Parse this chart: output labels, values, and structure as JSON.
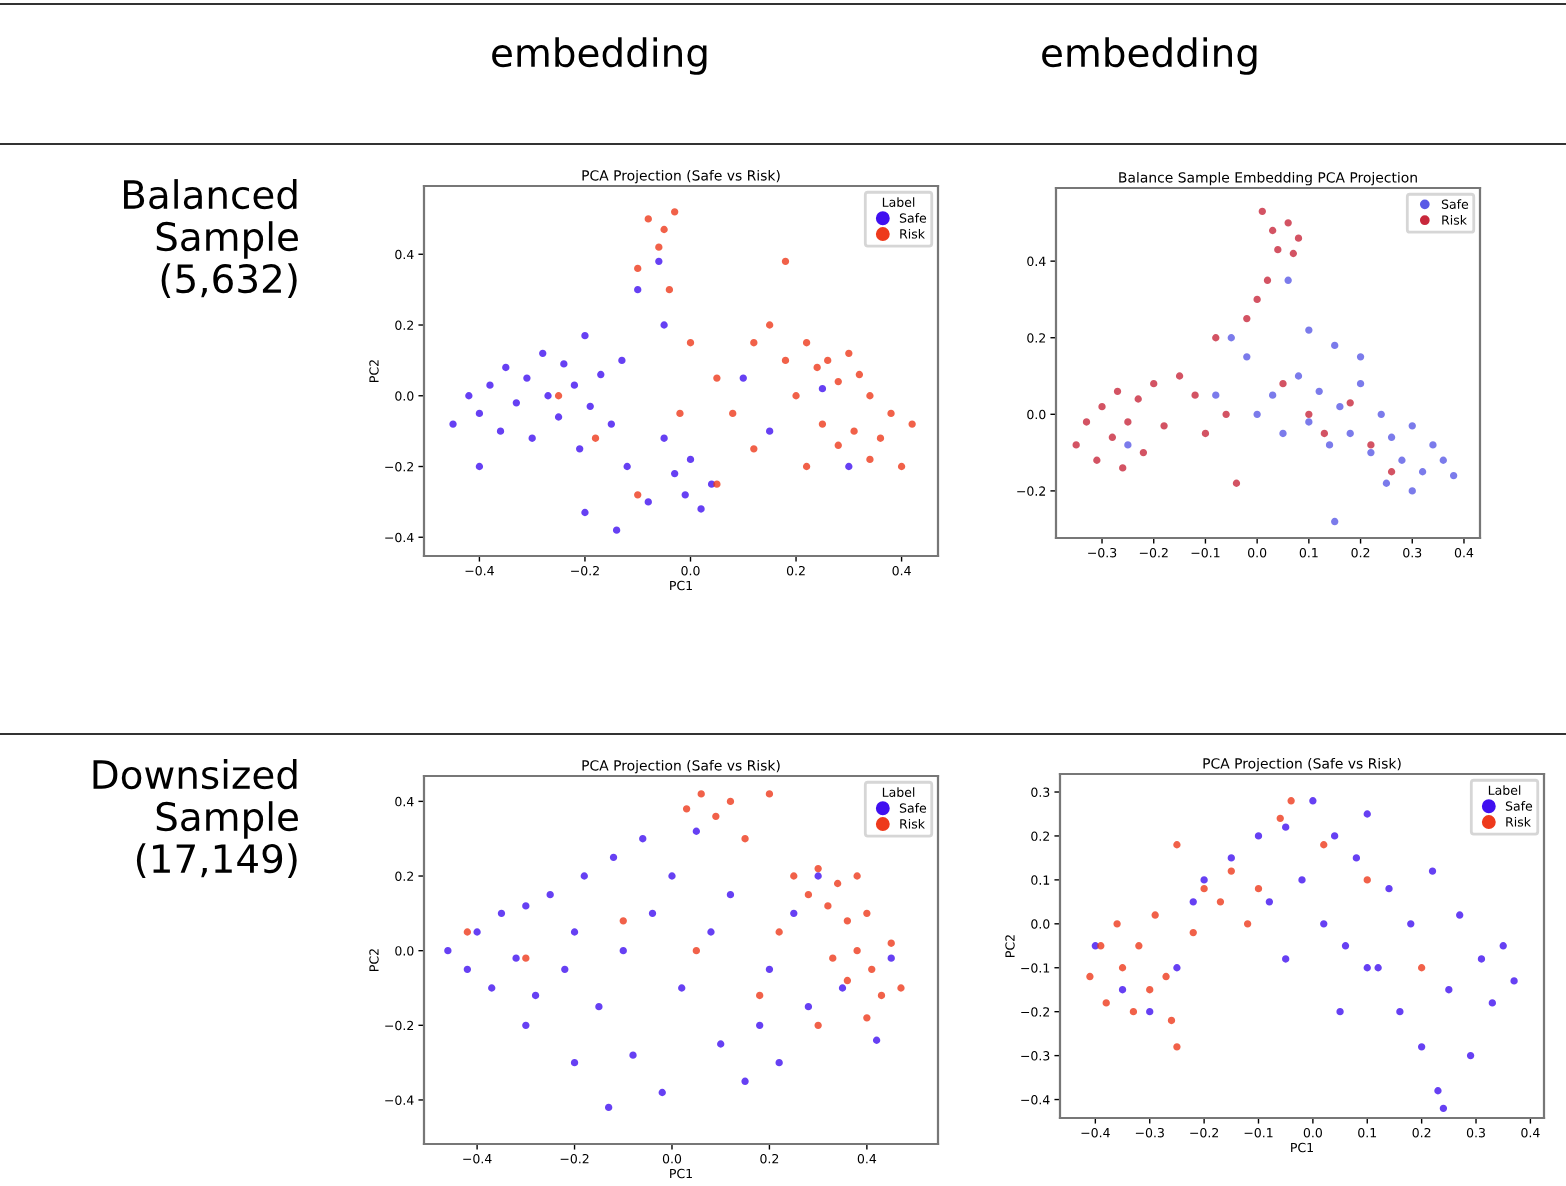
{
  "chart_data": [
    {
      "type": "scatter",
      "title": "PCA Projection (Safe vs Risk)",
      "xlabel": "PC1",
      "ylabel": "PC2",
      "legend_title": "Label",
      "legend": "top right",
      "marker": "circle",
      "grid": false,
      "annotations": [
        "embedding",
        "Balanced Sample (5,632)"
      ],
      "xlim": [
        -0.505,
        0.469
      ],
      "ylim": [
        -0.453,
        0.593
      ],
      "xticks": [
        {
          "value": -0.4,
          "label": "−0.4"
        },
        {
          "value": -0.2,
          "label": "−0.2"
        },
        {
          "value": 0,
          "label": "0.0"
        },
        {
          "value": 0.2,
          "label": "0.2"
        },
        {
          "value": 0.4,
          "label": "0.4"
        }
      ],
      "yticks": [
        {
          "value": -0.4,
          "label": "−0.4"
        },
        {
          "value": -0.2,
          "label": "−0.2"
        },
        {
          "value": 0,
          "label": "0.0"
        },
        {
          "value": 0.2,
          "label": "0.2"
        },
        {
          "value": 0.4,
          "label": "0.4"
        }
      ],
      "series": [
        {
          "name": "Safe",
          "color": "#4010f0",
          "x": [
            -0.45,
            -0.42,
            -0.4,
            -0.38,
            -0.36,
            -0.35,
            -0.33,
            -0.31,
            -0.3,
            -0.28,
            -0.27,
            -0.25,
            -0.24,
            -0.22,
            -0.21,
            -0.2,
            -0.19,
            -0.17,
            -0.15,
            -0.13,
            -0.12,
            -0.1,
            -0.08,
            -0.06,
            -0.05,
            -0.03,
            -0.01,
            0.0,
            0.02,
            0.04,
            -0.14,
            -0.2,
            0.1,
            0.15,
            0.25,
            0.3,
            -0.4,
            -0.05
          ],
          "values": [
            -0.08,
            0.0,
            -0.05,
            0.03,
            -0.1,
            0.08,
            -0.02,
            0.05,
            -0.12,
            0.12,
            0.0,
            -0.06,
            0.09,
            0.03,
            -0.15,
            0.17,
            -0.03,
            0.06,
            -0.08,
            0.1,
            -0.2,
            0.3,
            -0.3,
            0.38,
            -0.12,
            -0.22,
            -0.28,
            -0.18,
            -0.32,
            -0.25,
            -0.38,
            -0.33,
            0.05,
            -0.1,
            0.02,
            -0.2,
            -0.2,
            0.2
          ]
        },
        {
          "name": "Risk",
          "color": "#ee3a1c",
          "x": [
            -0.08,
            -0.05,
            -0.03,
            -0.06,
            -0.1,
            -0.04,
            0.0,
            0.05,
            0.08,
            0.12,
            0.15,
            0.18,
            0.2,
            0.22,
            0.24,
            0.26,
            0.28,
            0.3,
            0.32,
            0.34,
            0.25,
            0.28,
            0.31,
            0.34,
            0.36,
            0.38,
            0.4,
            0.42,
            0.22,
            0.12,
            0.05,
            -0.02,
            -0.25,
            -0.18,
            0.18,
            -0.1
          ],
          "values": [
            0.5,
            0.47,
            0.52,
            0.42,
            0.36,
            0.3,
            0.15,
            0.05,
            -0.05,
            0.15,
            0.2,
            0.1,
            0.0,
            0.15,
            0.08,
            0.1,
            0.04,
            0.12,
            0.06,
            0.0,
            -0.08,
            -0.14,
            -0.1,
            -0.18,
            -0.12,
            -0.05,
            -0.2,
            -0.08,
            -0.2,
            -0.15,
            -0.25,
            -0.05,
            0.0,
            -0.12,
            0.38,
            -0.28
          ]
        }
      ]
    },
    {
      "type": "scatter",
      "title": "Balance Sample Embedding PCA Projection",
      "legend": "top right",
      "marker": "circle",
      "grid": false,
      "annotations": [
        "embedding"
      ],
      "xlim": [
        -0.389,
        0.431
      ],
      "ylim": [
        -0.323,
        0.591
      ],
      "xticks": [
        {
          "value": -0.3,
          "label": "−0.3"
        },
        {
          "value": -0.2,
          "label": "−0.2"
        },
        {
          "value": -0.1,
          "label": "−0.1"
        },
        {
          "value": 0,
          "label": "0.0"
        },
        {
          "value": 0.1,
          "label": "0.1"
        },
        {
          "value": 0.2,
          "label": "0.2"
        },
        {
          "value": 0.3,
          "label": "0.3"
        },
        {
          "value": 0.4,
          "label": "0.4"
        }
      ],
      "yticks": [
        {
          "value": -0.2,
          "label": "−0.2"
        },
        {
          "value": 0,
          "label": "0.0"
        },
        {
          "value": 0.2,
          "label": "0.2"
        },
        {
          "value": 0.4,
          "label": "0.4"
        }
      ],
      "series": [
        {
          "name": "Safe",
          "color": "#5a5ae6",
          "x": [
            0.0,
            0.03,
            0.05,
            0.08,
            0.1,
            0.12,
            0.14,
            0.16,
            0.18,
            0.2,
            0.22,
            0.24,
            0.26,
            0.28,
            0.3,
            0.32,
            0.34,
            0.36,
            0.38,
            0.3,
            0.25,
            0.15,
            -0.05,
            -0.02,
            0.15,
            0.2,
            -0.08,
            0.1,
            -0.25,
            0.06
          ],
          "values": [
            0.0,
            0.05,
            -0.05,
            0.1,
            -0.02,
            0.06,
            -0.08,
            0.02,
            -0.05,
            0.08,
            -0.1,
            0.0,
            -0.06,
            -0.12,
            -0.03,
            -0.15,
            -0.08,
            -0.12,
            -0.16,
            -0.2,
            -0.18,
            -0.28,
            0.2,
            0.15,
            0.18,
            0.15,
            0.05,
            0.22,
            -0.08,
            0.35
          ]
        },
        {
          "name": "Risk",
          "color": "#c8283c",
          "x": [
            -0.35,
            -0.33,
            -0.31,
            -0.3,
            -0.28,
            -0.27,
            -0.26,
            -0.25,
            -0.23,
            -0.22,
            -0.2,
            -0.18,
            -0.15,
            -0.12,
            -0.1,
            -0.06,
            -0.08,
            -0.02,
            0.0,
            0.02,
            0.04,
            0.03,
            0.06,
            0.08,
            0.07,
            0.01,
            0.1,
            0.13,
            0.18,
            0.22,
            0.26,
            0.05,
            -0.04
          ],
          "values": [
            -0.08,
            -0.02,
            -0.12,
            0.02,
            -0.06,
            0.06,
            -0.14,
            -0.02,
            0.04,
            -0.1,
            0.08,
            -0.03,
            0.1,
            0.05,
            -0.05,
            0.0,
            0.2,
            0.25,
            0.3,
            0.35,
            0.43,
            0.48,
            0.5,
            0.46,
            0.42,
            0.53,
            0.0,
            -0.05,
            0.03,
            -0.08,
            -0.15,
            0.08,
            -0.18
          ]
        }
      ]
    },
    {
      "type": "scatter",
      "title": "PCA Projection (Safe vs Risk)",
      "xlabel": "PC1",
      "ylabel": "PC2",
      "legend_title": "Label",
      "legend": "top right",
      "marker": "circle",
      "grid": false,
      "annotations": [
        "Downsized Sample (17,149)"
      ],
      "xlim": [
        -0.509,
        0.546
      ],
      "ylim": [
        -0.518,
        0.468
      ],
      "xticks": [
        {
          "value": -0.4,
          "label": "−0.4"
        },
        {
          "value": -0.2,
          "label": "−0.2"
        },
        {
          "value": 0,
          "label": "0.0"
        },
        {
          "value": 0.2,
          "label": "0.2"
        },
        {
          "value": 0.4,
          "label": "0.4"
        }
      ],
      "yticks": [
        {
          "value": -0.4,
          "label": "−0.4"
        },
        {
          "value": -0.2,
          "label": "−0.2"
        },
        {
          "value": 0,
          "label": "0.0"
        },
        {
          "value": 0.2,
          "label": "0.2"
        },
        {
          "value": 0.4,
          "label": "0.4"
        }
      ],
      "series": [
        {
          "name": "Safe",
          "color": "#4010f0",
          "x": [
            -0.46,
            -0.42,
            -0.4,
            -0.37,
            -0.35,
            -0.32,
            -0.3,
            -0.28,
            -0.25,
            -0.22,
            -0.2,
            -0.18,
            -0.15,
            -0.12,
            -0.1,
            -0.08,
            -0.06,
            -0.04,
            -0.02,
            0.0,
            0.02,
            0.05,
            0.08,
            0.1,
            0.12,
            0.15,
            0.18,
            0.2,
            0.22,
            0.25,
            0.28,
            0.3,
            0.35,
            0.42,
            -0.13,
            -0.2,
            -0.3,
            0.45
          ],
          "values": [
            0.0,
            -0.05,
            0.05,
            -0.1,
            0.1,
            -0.02,
            0.12,
            -0.12,
            0.15,
            -0.05,
            0.05,
            0.2,
            -0.15,
            0.25,
            0.0,
            -0.28,
            0.3,
            0.1,
            -0.38,
            0.2,
            -0.1,
            0.32,
            0.05,
            -0.25,
            0.15,
            -0.35,
            -0.2,
            -0.05,
            -0.3,
            0.1,
            -0.15,
            0.2,
            -0.1,
            -0.24,
            -0.42,
            -0.3,
            -0.2,
            -0.02
          ]
        },
        {
          "name": "Risk",
          "color": "#ee3a1c",
          "x": [
            0.03,
            0.06,
            0.09,
            0.12,
            0.15,
            0.2,
            0.25,
            0.28,
            0.3,
            0.32,
            0.34,
            0.36,
            0.38,
            0.4,
            0.33,
            0.36,
            0.38,
            0.41,
            0.43,
            0.45,
            0.47,
            0.4,
            0.3,
            0.22,
            0.18,
            0.05,
            -0.1,
            -0.3,
            -0.42
          ],
          "values": [
            0.38,
            0.42,
            0.36,
            0.4,
            0.3,
            0.42,
            0.2,
            0.15,
            0.22,
            0.12,
            0.18,
            0.08,
            0.2,
            0.1,
            -0.02,
            -0.08,
            0.0,
            -0.05,
            -0.12,
            0.02,
            -0.1,
            -0.18,
            -0.2,
            0.05,
            -0.12,
            0.0,
            0.08,
            -0.02,
            0.05
          ]
        }
      ]
    },
    {
      "type": "scatter",
      "title": "PCA Projection (Safe vs Risk)",
      "xlabel": "PC1",
      "ylabel": "PC2",
      "legend_title": "Label",
      "legend": "top right",
      "marker": "circle",
      "grid": false,
      "xlim": [
        -0.465,
        0.425
      ],
      "ylim": [
        -0.442,
        0.341
      ],
      "xticks": [
        {
          "value": -0.4,
          "label": "−0.4"
        },
        {
          "value": -0.3,
          "label": "−0.3"
        },
        {
          "value": -0.2,
          "label": "−0.2"
        },
        {
          "value": -0.1,
          "label": "−0.1"
        },
        {
          "value": 0,
          "label": "0.0"
        },
        {
          "value": 0.1,
          "label": "0.1"
        },
        {
          "value": 0.2,
          "label": "0.2"
        },
        {
          "value": 0.3,
          "label": "0.3"
        },
        {
          "value": 0.4,
          "label": "0.4"
        }
      ],
      "yticks": [
        {
          "value": -0.4,
          "label": "−0.4"
        },
        {
          "value": -0.3,
          "label": "−0.3"
        },
        {
          "value": -0.2,
          "label": "−0.2"
        },
        {
          "value": -0.1,
          "label": "−0.1"
        },
        {
          "value": 0,
          "label": "0.0"
        },
        {
          "value": 0.1,
          "label": "0.1"
        },
        {
          "value": 0.2,
          "label": "0.2"
        },
        {
          "value": 0.3,
          "label": "0.3"
        }
      ],
      "series": [
        {
          "name": "Safe",
          "color": "#4010f0",
          "x": [
            -0.4,
            -0.35,
            -0.3,
            -0.25,
            -0.22,
            -0.2,
            -0.15,
            -0.1,
            -0.08,
            -0.05,
            -0.02,
            0.0,
            0.02,
            0.04,
            0.06,
            0.08,
            0.1,
            0.12,
            0.14,
            0.16,
            0.18,
            0.2,
            0.22,
            0.23,
            0.25,
            0.27,
            0.29,
            0.31,
            0.33,
            0.35,
            0.37,
            0.1,
            -0.05,
            0.05,
            0.24
          ],
          "values": [
            -0.05,
            -0.15,
            -0.2,
            -0.1,
            0.05,
            0.1,
            0.15,
            0.2,
            0.05,
            0.22,
            0.1,
            0.28,
            0.0,
            0.2,
            -0.05,
            0.15,
            0.25,
            -0.1,
            0.08,
            -0.2,
            0.0,
            -0.28,
            0.12,
            -0.38,
            -0.15,
            0.02,
            -0.3,
            -0.08,
            -0.18,
            -0.05,
            -0.13,
            -0.1,
            -0.08,
            -0.2,
            -0.42
          ]
        },
        {
          "name": "Risk",
          "color": "#ee3a1c",
          "x": [
            -0.41,
            -0.39,
            -0.38,
            -0.36,
            -0.35,
            -0.33,
            -0.32,
            -0.3,
            -0.29,
            -0.27,
            -0.26,
            -0.25,
            -0.22,
            -0.2,
            -0.17,
            -0.15,
            -0.12,
            -0.1,
            -0.06,
            -0.04,
            -0.25,
            0.02,
            0.1,
            0.2
          ],
          "values": [
            -0.12,
            -0.05,
            -0.18,
            0.0,
            -0.1,
            -0.2,
            -0.05,
            -0.15,
            0.02,
            -0.12,
            -0.22,
            0.18,
            -0.02,
            0.08,
            0.05,
            0.12,
            0.0,
            0.08,
            0.24,
            0.28,
            -0.28,
            0.18,
            0.1,
            -0.1
          ]
        }
      ]
    }
  ]
}
